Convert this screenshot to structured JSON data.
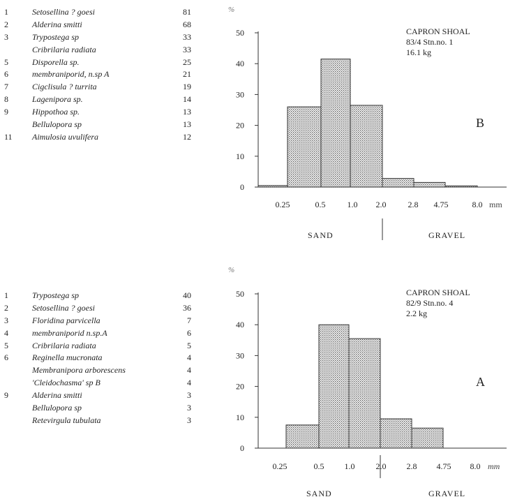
{
  "panel_b": {
    "species": [
      {
        "rank": "1",
        "name": "Setosellina ? goesi",
        "count": "81"
      },
      {
        "rank": "2",
        "name": "Alderina smitti",
        "count": "68"
      },
      {
        "rank": "3",
        "name": "Trypostega sp",
        "count": "33"
      },
      {
        "rank": "",
        "name": "Cribrilaria radiata",
        "count": "33"
      },
      {
        "rank": "5",
        "name": "Disporella sp.",
        "count": "25"
      },
      {
        "rank": "6",
        "name": "membraniporid, n.sp A",
        "count": "21"
      },
      {
        "rank": "7",
        "name": "Cigclisula ? turrita",
        "count": "19"
      },
      {
        "rank": "8",
        "name": "Lagenipora sp.",
        "count": "14"
      },
      {
        "rank": "9",
        "name": "Hippothoa sp.",
        "count": "13"
      },
      {
        "rank": "",
        "name": "Bellulopora sp",
        "count": "13"
      },
      {
        "rank": "11",
        "name": "Aimulosia uvulifera",
        "count": "12"
      }
    ]
  },
  "panel_a": {
    "species": [
      {
        "rank": "1",
        "name": "Trypostega sp",
        "count": "40"
      },
      {
        "rank": "2",
        "name": "Setosellina ? goesi",
        "count": "36"
      },
      {
        "rank": "3",
        "name": "Floridina parvicella",
        "count": "7"
      },
      {
        "rank": "4",
        "name": "membraniporid n.sp.A",
        "count": "6"
      },
      {
        "rank": "5",
        "name": "Cribrilaria radiata",
        "count": "5"
      },
      {
        "rank": "6",
        "name": "Reginella mucronata",
        "count": "4"
      },
      {
        "rank": "",
        "name": "Membranipora arborescens",
        "count": "4"
      },
      {
        "rank": "",
        "name": "'Cleidochasma' sp B",
        "count": "4"
      },
      {
        "rank": "9",
        "name": "Alderina smitti",
        "count": "3"
      },
      {
        "rank": "",
        "name": "Bellulopora sp",
        "count": "3"
      },
      {
        "rank": "",
        "name": "Retevirgula tubulata",
        "count": "3"
      }
    ]
  },
  "chart_data": [
    {
      "type": "bar",
      "panel_letter": "B",
      "site": "CAPRON SHOAL",
      "station": "83/4 Stn.no. 1",
      "weight": "16.1 kg",
      "ylabel": "%",
      "xunit": "mm",
      "ylim": [
        0,
        50
      ],
      "y_ticks": [
        "0",
        "10",
        "20",
        "30",
        "40",
        "50"
      ],
      "x_ticks": [
        "0.25",
        "0.5",
        "1.0",
        "2.0",
        "2.8",
        "4.75",
        "8.0"
      ],
      "classes": [
        "<0.25",
        "0.25-0.5",
        "0.5-1.0",
        "1.0-2.0",
        "2.0-2.8",
        "2.8-4.75",
        "4.75-8.0"
      ],
      "values": [
        0.5,
        26,
        41.5,
        26.5,
        2.8,
        1.5,
        0.4
      ],
      "zones": [
        {
          "label": "SAND"
        },
        {
          "label": "GRAVEL"
        }
      ],
      "zone_boundary": "2.0"
    },
    {
      "type": "bar",
      "panel_letter": "A",
      "site": "CAPRON SHOAL",
      "station": "82/9 Stn.no. 4",
      "weight": "2.2 kg",
      "ylabel": "%",
      "xunit": "mm",
      "ylim": [
        0,
        50
      ],
      "y_ticks": [
        "0",
        "10",
        "20",
        "30",
        "40",
        "50"
      ],
      "x_ticks": [
        "0.25",
        "0.5",
        "1.0",
        "2.0",
        "2.8",
        "4.75",
        "8.0"
      ],
      "classes": [
        "<0.25",
        "0.25-0.5",
        "0.5-1.0",
        "1.0-2.0",
        "2.0-2.8",
        "2.8-4.75",
        "4.75-8.0"
      ],
      "values": [
        0,
        7.5,
        40,
        35.5,
        9.5,
        6.5,
        0
      ],
      "zones": [
        {
          "label": "SAND"
        },
        {
          "label": "GRAVEL"
        }
      ],
      "zone_boundary": "2.0"
    }
  ]
}
